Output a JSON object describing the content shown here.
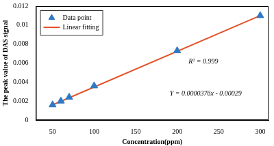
{
  "chart_data": {
    "type": "scatter",
    "x_label": "Concentration(ppm)",
    "y_label": "The peak value of DAS signal",
    "series": [
      {
        "name": "Data point",
        "type": "scatter",
        "color": "#2f78c4",
        "marker": "triangle",
        "x": [
          50,
          60,
          70,
          100,
          200,
          300
        ],
        "values": [
          0.0016,
          0.002,
          0.0024,
          0.0036,
          0.0073,
          0.011
        ]
      },
      {
        "name": "Linear fitting",
        "type": "line",
        "color": "#e2532a",
        "line_style": "solid",
        "x": [
          50,
          300
        ],
        "values": [
          0.0016,
          0.011
        ]
      }
    ],
    "annotations": [
      "R² = 0.999",
      "Y = 0.0000376x - 0.00029"
    ],
    "xlim": [
      30,
      310
    ],
    "xticks": [
      50,
      100,
      150,
      200,
      250,
      300
    ],
    "ylim": [
      0,
      0.012
    ],
    "yticks": [
      0,
      0.002,
      0.004,
      0.006,
      0.008,
      0.01,
      0.012
    ],
    "grid": false,
    "legend": "upper left"
  }
}
